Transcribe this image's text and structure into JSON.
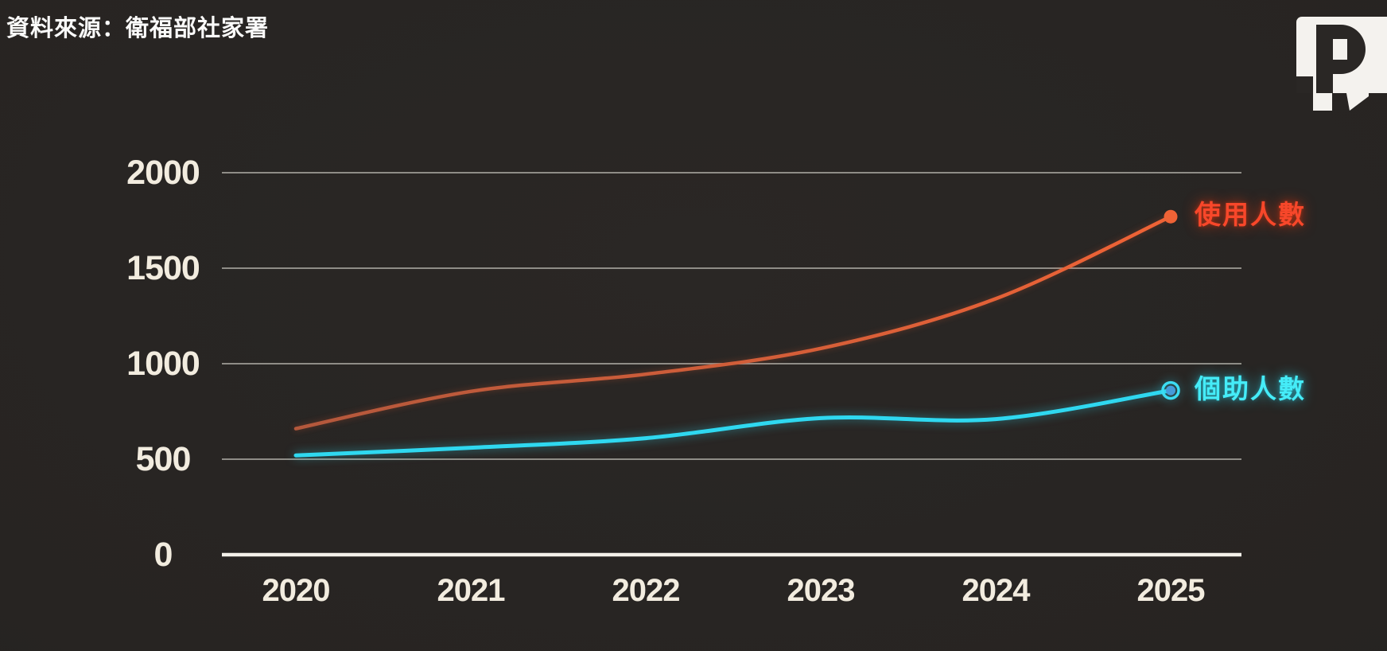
{
  "source_note": "資料來源：衛福部社家署",
  "logo": {
    "name": "pts-p-news-logo",
    "letter": "P",
    "box_color": "#f4f2ee",
    "glyph_color": "#2a2725"
  },
  "axis": {
    "y_tick_labels": [
      "0",
      "500",
      "1000",
      "1500",
      "2000"
    ],
    "x_tick_labels": [
      "2020",
      "2021",
      "2022",
      "2023",
      "2024",
      "2025"
    ]
  },
  "colors": {
    "background": "#272422",
    "tick_text": "#f2ecdf",
    "gridline": "#8f8d87",
    "axis_line": "#f4f1ea",
    "users_line_start": "#b3583c",
    "users_line_end": "#ef6336",
    "users_dot": "#ef6336",
    "users_label": "#f8472a",
    "assistants_line": "#2fd8f0",
    "assistants_label": "#45ecf8",
    "assistants_marker_inner": "#4b8fd6",
    "assistants_marker_ring": "#3cdcf2"
  },
  "chart_data": {
    "type": "line",
    "x": [
      2020,
      2021,
      2022,
      2023,
      2024,
      2025
    ],
    "series": [
      {
        "name": "使用人數",
        "values": [
          660,
          855,
          945,
          1080,
          1340,
          1770
        ],
        "marker": "dot"
      },
      {
        "name": "個助人數",
        "values": [
          520,
          560,
          610,
          715,
          710,
          860
        ],
        "marker": "ring"
      }
    ],
    "yticks": [
      0,
      500,
      1000,
      1500,
      2000
    ],
    "ylim": [
      0,
      2000
    ],
    "title": "",
    "xlabel": "",
    "ylabel": "",
    "grid": "horizontal-only",
    "legend_position": "right-of-line-end"
  }
}
